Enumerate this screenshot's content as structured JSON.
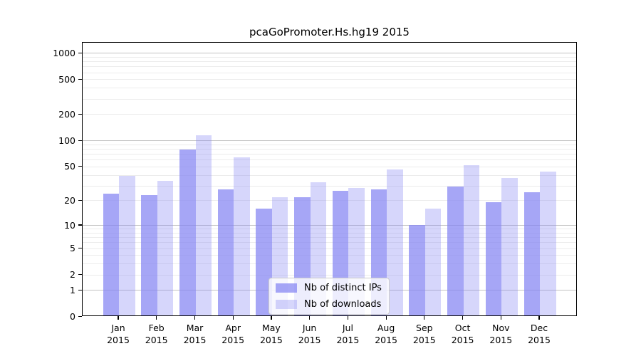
{
  "chart_data": {
    "type": "bar",
    "title": "pcaGoPromoter.Hs.hg19 2015",
    "categories": [
      "Jan",
      "Feb",
      "Mar",
      "Apr",
      "May",
      "Jun",
      "Jul",
      "Aug",
      "Sep",
      "Oct",
      "Nov",
      "Dec"
    ],
    "year": "2015",
    "xlabel": "",
    "ylabel": "",
    "series": [
      {
        "name": "Nb of distinct IPs",
        "color": "#a8a8f7",
        "color_base": "#8484f2",
        "alpha": 0.72,
        "values": [
          24,
          23,
          78,
          27,
          16,
          22,
          26,
          27,
          10,
          29,
          19,
          25
        ]
      },
      {
        "name": "Nb of downloads",
        "color": "#d8d8fa",
        "color_base": "#8484f2",
        "alpha": 0.33,
        "values": [
          39,
          34,
          115,
          64,
          22,
          33,
          28,
          46,
          16,
          52,
          37,
          44
        ]
      }
    ],
    "yscale": "log1p",
    "yticks": [
      0,
      1,
      2,
      5,
      10,
      20,
      50,
      100,
      200,
      500,
      1000
    ],
    "ylim": [
      0,
      1330
    ],
    "grid": true,
    "legend_position": "lower center",
    "gridline_major_color": "#c3c3c3",
    "gridline_minor_color": "#ececec"
  }
}
